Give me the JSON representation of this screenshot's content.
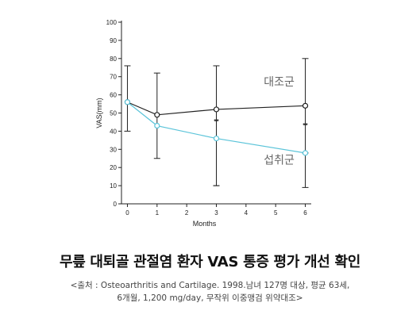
{
  "chart_data": {
    "type": "line",
    "xlabel": "Months",
    "ylabel": "VAS(mm)",
    "x": [
      0,
      1,
      3,
      6
    ],
    "x_ticks": [
      0,
      1,
      2,
      3,
      4,
      5,
      6
    ],
    "y_ticks": [
      0,
      10,
      20,
      30,
      40,
      50,
      60,
      70,
      80,
      90,
      100
    ],
    "xlim": [
      -0.2,
      6.2
    ],
    "ylim": [
      0,
      100
    ],
    "grid": false,
    "series": [
      {
        "name": "대조군",
        "color": "#222222",
        "values": [
          56,
          49,
          52,
          54
        ],
        "error_high": [
          76,
          72,
          76,
          80
        ],
        "error_low": [
          40,
          25,
          10,
          28
        ]
      },
      {
        "name": "섭취군",
        "color": "#5bc4d9",
        "values": [
          56,
          43,
          36,
          28
        ],
        "error_high": [
          null,
          null,
          null,
          null
        ],
        "error_low": [
          null,
          null,
          10,
          9
        ]
      }
    ],
    "annotations": [
      {
        "text": "**",
        "x": 3,
        "y": 44
      },
      {
        "text": "**",
        "x": 6,
        "y": 42
      }
    ]
  },
  "headline": "무릎 대퇴골 관절염 환자 VAS 통증 평가 개선 확인",
  "source_line1": "<출처 : Osteoarthritis and Cartilage. 1998.남녀 127명 대상, 평균 63세,",
  "source_line2": "6개월, 1,200 mg/day, 무작위 이중맹검 위약대조>"
}
